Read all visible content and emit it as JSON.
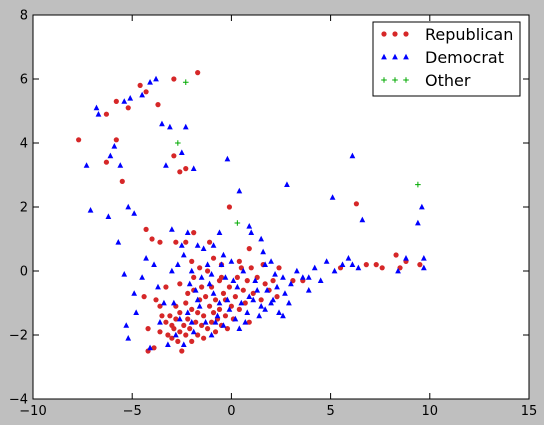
{
  "chart_data": {
    "type": "scatter",
    "xlim": [
      -10,
      15
    ],
    "ylim": [
      -4,
      8
    ],
    "xticks": [
      -10,
      -5,
      0,
      5,
      10,
      15
    ],
    "yticks": [
      -4,
      -2,
      0,
      2,
      4,
      6,
      8
    ],
    "xtick_labels": [
      "−10",
      "−5",
      "0",
      "5",
      "10",
      "15"
    ],
    "ytick_labels": [
      "−4",
      "−2",
      "0",
      "2",
      "4",
      "6",
      "8"
    ],
    "grid": false,
    "legend_position": "top-right",
    "series": [
      {
        "name": "Republican",
        "marker": "circle",
        "color": "#d62728",
        "points": [
          [
            -7.7,
            4.1
          ],
          [
            -6.3,
            4.9
          ],
          [
            -6.3,
            3.4
          ],
          [
            -5.8,
            5.3
          ],
          [
            -5.8,
            4.1
          ],
          [
            -5.5,
            2.8
          ],
          [
            -5.2,
            5.1
          ],
          [
            -4.6,
            5.8
          ],
          [
            -4.3,
            5.6
          ],
          [
            -3.7,
            5.2
          ],
          [
            -2.9,
            6.0
          ],
          [
            -1.7,
            6.2
          ],
          [
            -2.9,
            3.6
          ],
          [
            -2.6,
            3.1
          ],
          [
            -2.3,
            3.2
          ],
          [
            -4.3,
            1.3
          ],
          [
            -4.0,
            1.0
          ],
          [
            -3.6,
            0.9
          ],
          [
            -2.8,
            0.9
          ],
          [
            -2.3,
            0.9
          ],
          [
            -1.9,
            1.2
          ],
          [
            -1.1,
            0.9
          ],
          [
            -0.5,
            0.2
          ],
          [
            -0.1,
            2.0
          ],
          [
            0.4,
            0.3
          ],
          [
            0.9,
            0.7
          ],
          [
            1.6,
            0.2
          ],
          [
            2.4,
            0.1
          ],
          [
            3.1,
            -0.3
          ],
          [
            3.6,
            -0.3
          ],
          [
            5.5,
            0.1
          ],
          [
            6.3,
            2.1
          ],
          [
            6.8,
            0.2
          ],
          [
            7.3,
            0.2
          ],
          [
            7.6,
            0.1
          ],
          [
            8.3,
            0.5
          ],
          [
            8.5,
            0.1
          ],
          [
            8.8,
            0.3
          ],
          [
            9.5,
            0.2
          ],
          [
            -4.4,
            -0.8
          ],
          [
            -4.2,
            -1.8
          ],
          [
            -4.2,
            -2.5
          ],
          [
            -3.8,
            -0.9
          ],
          [
            -3.6,
            -1.9
          ],
          [
            -3.5,
            -1.4
          ],
          [
            -3.3,
            -1.6
          ],
          [
            -3.2,
            -2.0
          ],
          [
            -3.1,
            -1.4
          ],
          [
            -3.0,
            -1.7
          ],
          [
            -3.0,
            -2.1
          ],
          [
            -2.9,
            -1.8
          ],
          [
            -2.8,
            -1.5
          ],
          [
            -2.7,
            -2.2
          ],
          [
            -2.6,
            -1.9
          ],
          [
            -2.6,
            -1.3
          ],
          [
            -2.5,
            -2.5
          ],
          [
            -2.4,
            -1.7
          ],
          [
            -2.3,
            -1.0
          ],
          [
            -2.3,
            -2.0
          ],
          [
            -2.2,
            -1.5
          ],
          [
            -2.1,
            -1.8
          ],
          [
            -2.0,
            -1.2
          ],
          [
            -2.0,
            -2.2
          ],
          [
            -1.9,
            -0.6
          ],
          [
            -1.8,
            -1.6
          ],
          [
            -1.7,
            -2.0
          ],
          [
            -1.7,
            -1.3
          ],
          [
            -1.6,
            -0.9
          ],
          [
            -1.5,
            -1.7
          ],
          [
            -1.4,
            -1.4
          ],
          [
            -1.4,
            -2.1
          ],
          [
            -1.3,
            -0.8
          ],
          [
            -1.2,
            -1.8
          ],
          [
            -1.1,
            -1.1
          ],
          [
            -1.0,
            -1.6
          ],
          [
            -1.0,
            -0.5
          ],
          [
            -0.9,
            -1.3
          ],
          [
            -0.8,
            -1.9
          ],
          [
            -0.8,
            -0.9
          ],
          [
            -0.7,
            -1.5
          ],
          [
            -0.6,
            -0.3
          ],
          [
            -0.6,
            -1.2
          ],
          [
            -0.5,
            -1.7
          ],
          [
            -0.4,
            -0.7
          ],
          [
            -0.3,
            -1.4
          ],
          [
            -0.3,
            -0.9
          ],
          [
            -0.2,
            -1.8
          ],
          [
            -0.1,
            -0.5
          ],
          [
            0.0,
            -1.1
          ],
          [
            0.1,
            -1.5
          ],
          [
            0.2,
            -0.8
          ],
          [
            0.3,
            -0.2
          ],
          [
            0.4,
            -1.2
          ],
          [
            0.5,
            0.1
          ],
          [
            0.6,
            -0.6
          ],
          [
            0.7,
            -1.0
          ],
          [
            0.8,
            -0.3
          ],
          [
            0.9,
            -1.6
          ],
          [
            1.0,
            0.1
          ],
          [
            1.1,
            -0.7
          ],
          [
            1.3,
            -0.2
          ],
          [
            1.5,
            -0.9
          ],
          [
            1.7,
            -0.4
          ],
          [
            1.9,
            -0.6
          ],
          [
            2.1,
            -0.3
          ],
          [
            2.3,
            -0.8
          ],
          [
            -3.9,
            -2.4
          ],
          [
            -2.8,
            -1.1
          ],
          [
            -1.6,
            0.1
          ],
          [
            -2.0,
            0.3
          ],
          [
            -1.2,
            0.0
          ],
          [
            -0.9,
            0.4
          ],
          [
            -0.5,
            -0.2
          ],
          [
            -3.3,
            -0.5
          ],
          [
            -2.6,
            -0.4
          ],
          [
            -3.6,
            -1.1
          ],
          [
            -1.9,
            -0.2
          ],
          [
            -1.5,
            -0.5
          ],
          [
            -2.2,
            -0.7
          ]
        ]
      },
      {
        "name": "Democrat",
        "marker": "triangle",
        "color": "#0000ff",
        "points": [
          [
            -7.3,
            3.3
          ],
          [
            -6.8,
            5.1
          ],
          [
            -6.1,
            3.6
          ],
          [
            -5.9,
            3.9
          ],
          [
            -5.6,
            3.3
          ],
          [
            -5.4,
            5.3
          ],
          [
            -5.1,
            5.4
          ],
          [
            -4.5,
            5.5
          ],
          [
            -4.1,
            5.9
          ],
          [
            -3.8,
            6.0
          ],
          [
            -3.5,
            4.6
          ],
          [
            -3.1,
            4.5
          ],
          [
            -2.3,
            4.5
          ],
          [
            -2.5,
            3.7
          ],
          [
            -3.3,
            3.3
          ],
          [
            -1.9,
            3.2
          ],
          [
            -0.2,
            3.5
          ],
          [
            0.4,
            2.5
          ],
          [
            2.8,
            2.7
          ],
          [
            5.1,
            2.3
          ],
          [
            6.1,
            3.6
          ],
          [
            6.6,
            1.6
          ],
          [
            9.4,
            1.5
          ],
          [
            9.6,
            2.0
          ],
          [
            9.7,
            0.4
          ],
          [
            9.7,
            0.1
          ],
          [
            8.8,
            0.4
          ],
          [
            8.4,
            0.0
          ],
          [
            -7.1,
            1.9
          ],
          [
            -6.2,
            1.7
          ],
          [
            -5.7,
            0.9
          ],
          [
            -5.2,
            2.0
          ],
          [
            -4.9,
            1.8
          ],
          [
            -5.4,
            -0.1
          ],
          [
            -5.3,
            -1.7
          ],
          [
            -4.9,
            -0.7
          ],
          [
            -4.8,
            -1.3
          ],
          [
            -4.5,
            -0.2
          ],
          [
            -4.3,
            0.4
          ],
          [
            -3.9,
            0.2
          ],
          [
            -5.2,
            -2.1
          ],
          [
            -4.1,
            -2.4
          ],
          [
            -3.7,
            -0.5
          ],
          [
            -3.4,
            -1.0
          ],
          [
            -3.0,
            0.0
          ],
          [
            -2.7,
            0.2
          ],
          [
            -2.4,
            0.5
          ],
          [
            -2.1,
            -0.4
          ],
          [
            -1.8,
            -0.6
          ],
          [
            -1.5,
            -0.2
          ],
          [
            -1.2,
            0.2
          ],
          [
            -0.9,
            -0.7
          ],
          [
            -0.6,
            -1.0
          ],
          [
            -0.3,
            -0.2
          ],
          [
            0.0,
            0.3
          ],
          [
            0.3,
            -0.5
          ],
          [
            0.6,
            0.0
          ],
          [
            0.9,
            -0.8
          ],
          [
            1.2,
            -0.3
          ],
          [
            1.5,
            -1.1
          ],
          [
            1.8,
            -0.6
          ],
          [
            2.1,
            -0.9
          ],
          [
            2.4,
            -1.3
          ],
          [
            2.7,
            -0.7
          ],
          [
            3.0,
            -0.4
          ],
          [
            3.3,
            0.0
          ],
          [
            3.6,
            -0.2
          ],
          [
            3.9,
            -0.6
          ],
          [
            4.2,
            0.1
          ],
          [
            4.5,
            -0.3
          ],
          [
            4.8,
            0.3
          ],
          [
            5.2,
            0.0
          ],
          [
            5.6,
            0.2
          ],
          [
            5.9,
            0.4
          ],
          [
            6.1,
            0.2
          ],
          [
            6.4,
            0.1
          ],
          [
            -2.9,
            -1.0
          ],
          [
            -2.6,
            -1.5
          ],
          [
            -2.2,
            -1.3
          ],
          [
            -1.9,
            -1.9
          ],
          [
            -1.6,
            -1.1
          ],
          [
            -1.3,
            -1.6
          ],
          [
            -1.0,
            -2.0
          ],
          [
            -0.7,
            -1.4
          ],
          [
            -0.4,
            -1.7
          ],
          [
            -0.1,
            -1.2
          ],
          [
            0.2,
            -1.5
          ],
          [
            0.5,
            -1.0
          ],
          [
            0.8,
            -1.3
          ],
          [
            1.1,
            -0.9
          ],
          [
            1.4,
            -1.4
          ],
          [
            1.7,
            -1.2
          ],
          [
            2.0,
            -1.0
          ],
          [
            2.3,
            -0.5
          ],
          [
            2.6,
            -1.4
          ],
          [
            2.9,
            -1.0
          ],
          [
            -1.4,
            0.7
          ],
          [
            -0.9,
            0.8
          ],
          [
            -0.4,
            0.5
          ],
          [
            1.0,
            1.2
          ],
          [
            1.5,
            1.0
          ],
          [
            1.6,
            0.6
          ],
          [
            0.9,
            1.4
          ],
          [
            -3.6,
            -1.6
          ],
          [
            -3.2,
            -2.3
          ],
          [
            -2.8,
            -2.0
          ],
          [
            -2.4,
            -2.3
          ],
          [
            -2.0,
            -1.6
          ],
          [
            -1.7,
            -0.9
          ],
          [
            -1.1,
            -0.4
          ],
          [
            -0.8,
            -1.6
          ],
          [
            -0.2,
            -0.9
          ],
          [
            0.4,
            -1.8
          ],
          [
            0.7,
            -1.6
          ],
          [
            1.3,
            -0.6
          ],
          [
            2.2,
            -0.1
          ],
          [
            2.6,
            -0.2
          ],
          [
            3.9,
            -0.2
          ],
          [
            -2.0,
            0.0
          ],
          [
            -1.0,
            -0.1
          ],
          [
            -0.5,
            0.2
          ],
          [
            0.1,
            -0.3
          ],
          [
            -3.0,
            1.3
          ],
          [
            -2.2,
            1.2
          ],
          [
            -2.5,
            0.8
          ],
          [
            -1.7,
            0.8
          ],
          [
            -0.6,
            1.2
          ],
          [
            1.7,
            0.2
          ],
          [
            2.0,
            0.3
          ],
          [
            -6.7,
            4.9
          ]
        ]
      },
      {
        "name": "Other",
        "marker": "plus",
        "color": "#00aa00",
        "points": [
          [
            -2.3,
            5.9
          ],
          [
            -2.7,
            4.0
          ],
          [
            0.3,
            1.5
          ],
          [
            9.4,
            2.7
          ]
        ]
      }
    ]
  }
}
